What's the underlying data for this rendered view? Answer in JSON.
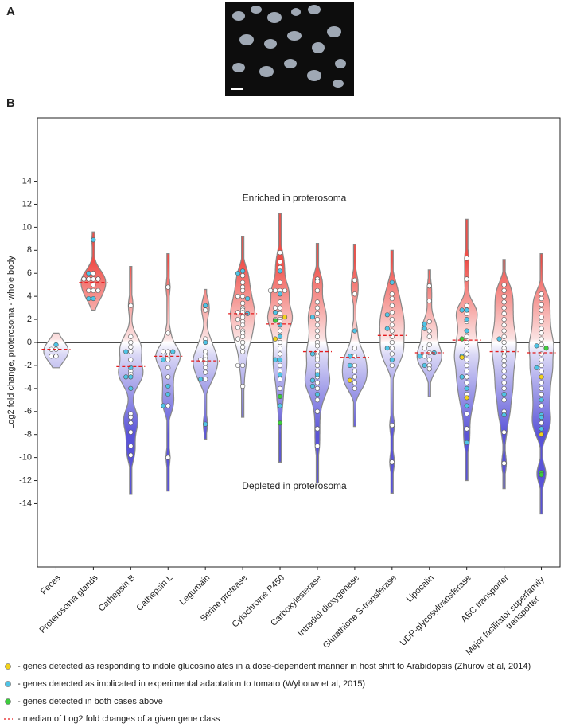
{
  "panel_a": {
    "label": "A"
  },
  "chart_data": {
    "type": "violin",
    "panel_label": "B",
    "ylabel": "Log2 fold change, proterosoma - whole body",
    "ylim": [
      -19.5,
      19.5
    ],
    "yticks": [
      -14,
      -12,
      -10,
      -8,
      -6,
      -4,
      -2,
      0,
      2,
      4,
      6,
      8,
      10,
      12,
      14
    ],
    "zero_line": true,
    "violin_colors": {
      "positive": "#f0504a",
      "negative": "#5a54d8"
    },
    "median_color": "#e31a1c",
    "annotations": [
      {
        "text": "Enriched in proterosoma",
        "y": 12.5
      },
      {
        "text": "Depleted in proterosoma",
        "y": -12.5
      }
    ],
    "groups": [
      {
        "name": "Feces",
        "min": -2.2,
        "max": 0.8,
        "median": -0.6,
        "values": [
          -0.2,
          -0.6,
          -0.6,
          -1.2,
          -1.2
        ],
        "colors": [
          "#4fc4e6",
          "#fff",
          "#fff",
          "#fff",
          "#fff"
        ]
      },
      {
        "name": "Proterosoma glands",
        "min": 2.8,
        "max": 9.6,
        "median": 5.2,
        "values": [
          8.9,
          6.0,
          5.5,
          5.5,
          5.5,
          5.5,
          5.0,
          4.5,
          4.5,
          4.5,
          6.0,
          3.8,
          3.8
        ],
        "colors": [
          "#4fc4e6",
          "#fff",
          "#fff",
          "#fff",
          "#fff",
          "#fff",
          "#fff",
          "#fff",
          "#fff",
          "#fff",
          "#4fc4e6",
          "#4fc4e6",
          "#4fc4e6"
        ]
      },
      {
        "name": "Cathepsin B",
        "min": -13.2,
        "max": 6.6,
        "median": -2.1,
        "values": [
          3.2,
          0.5,
          0,
          -0.4,
          -0.8,
          -1.5,
          -2.5,
          -2.8,
          -6.2,
          -6.5,
          -7.0,
          -7.8,
          -9.0,
          -9.8,
          -0.8,
          -2.2,
          -3.0,
          -3.0,
          -4.0
        ],
        "colors": [
          "#fff",
          "#fff",
          "#fff",
          "#fff",
          "#fff",
          "#fff",
          "#fff",
          "#fff",
          "#fff",
          "#fff",
          "#fff",
          "#fff",
          "#fff",
          "#fff",
          "#4fc4e6",
          "#4fc4e6",
          "#4fc4e6",
          "#4fc4e6",
          "#4fc4e6"
        ]
      },
      {
        "name": "Cathepsin L",
        "min": -12.9,
        "max": 7.7,
        "median": -1.2,
        "values": [
          4.8,
          0.8,
          -0.8,
          -0.8,
          -1.2,
          -2.2,
          -3.0,
          -1.5,
          -5.5,
          -10.0,
          -0.8,
          -1.5,
          -3.8,
          -4.5,
          -5.5
        ],
        "colors": [
          "#fff",
          "#fff",
          "#fff",
          "#fff",
          "#fff",
          "#fff",
          "#fff",
          "#fff",
          "#fff",
          "#fff",
          "#4fc4e6",
          "#4fc4e6",
          "#4fc4e6",
          "#4fc4e6",
          "#4fc4e6"
        ]
      },
      {
        "name": "Legumain",
        "min": -8.4,
        "max": 4.6,
        "median": -1.6,
        "values": [
          2.8,
          0.3,
          -0.8,
          -1.2,
          -1.5,
          -1.5,
          -1.8,
          -2.2,
          -2.6,
          -3.2,
          3.2,
          0,
          -3.2,
          -7.1
        ],
        "colors": [
          "#fff",
          "#fff",
          "#fff",
          "#fff",
          "#fff",
          "#fff",
          "#fff",
          "#fff",
          "#fff",
          "#fff",
          "#4fc4e6",
          "#4fc4e6",
          "#4fc4e6",
          "#4fc4e6"
        ]
      },
      {
        "name": "Serine protease",
        "min": -6.5,
        "max": 9.2,
        "median": 2.5,
        "values": [
          5.8,
          5.2,
          4.8,
          4.5,
          4.0,
          4.0,
          3.4,
          3.0,
          2.8,
          2.6,
          2.6,
          2.2,
          2.0,
          1.8,
          1.5,
          1.3,
          1.0,
          0.8,
          0.5,
          0.3,
          0,
          -0.4,
          -0.8,
          -2.0,
          -2.0,
          -3.8,
          6.2,
          6.0,
          3.8,
          2.5
        ],
        "colors": [
          "#fff",
          "#fff",
          "#fff",
          "#fff",
          "#fff",
          "#fff",
          "#fff",
          "#fff",
          "#fff",
          "#fff",
          "#fff",
          "#fff",
          "#fff",
          "#fff",
          "#fff",
          "#fff",
          "#fff",
          "#fff",
          "#fff",
          "#fff",
          "#fff",
          "#fff",
          "#fff",
          "#fff",
          "#fff",
          "#fff",
          "#4fc4e6",
          "#4fc4e6",
          "#4fc4e6",
          "#4fc4e6"
        ]
      },
      {
        "name": "Cytochrome P450",
        "min": -10.4,
        "max": 11.2,
        "median": 1.6,
        "values": [
          7.8,
          7.0,
          6.5,
          5.2,
          4.5,
          4.5,
          4.5,
          4.5,
          3.5,
          3.0,
          3.0,
          2.5,
          2.0,
          2.0,
          1.8,
          1.0,
          0,
          -0.5,
          -1.0,
          -2.0,
          -2.5,
          -3.2,
          -4.0,
          6.2,
          4.2,
          2.6,
          1.5,
          0.5,
          -1.5,
          -1.5,
          -2.8,
          -5.5,
          2.2,
          0.3,
          1.9,
          -4.7,
          -7.0
        ],
        "colors": [
          "#fff",
          "#fff",
          "#fff",
          "#fff",
          "#fff",
          "#fff",
          "#fff",
          "#fff",
          "#fff",
          "#fff",
          "#fff",
          "#fff",
          "#fff",
          "#fff",
          "#fff",
          "#fff",
          "#fff",
          "#fff",
          "#fff",
          "#fff",
          "#fff",
          "#fff",
          "#fff",
          "#4fc4e6",
          "#4fc4e6",
          "#4fc4e6",
          "#4fc4e6",
          "#4fc4e6",
          "#4fc4e6",
          "#4fc4e6",
          "#4fc4e6",
          "#4fc4e6",
          "#f2d21b",
          "#f2d21b",
          "#3dcc3d",
          "#3dcc3d",
          "#3dcc3d"
        ]
      },
      {
        "name": "Carboxylesterase",
        "min": -12.2,
        "max": 8.6,
        "median": -0.8,
        "values": [
          5.5,
          5.3,
          4.5,
          3.5,
          3.0,
          2.5,
          2.0,
          1.5,
          1.0,
          0.5,
          0,
          -0.3,
          -0.8,
          -1.2,
          -1.5,
          -2.0,
          -2.5,
          -3.0,
          -3.5,
          -4.0,
          -5.0,
          -6.0,
          -7.5,
          -9.0,
          2.2,
          -1.0,
          -2.8,
          -3.3,
          -3.8,
          -4.5
        ],
        "colors": [
          "#fff",
          "#fff",
          "#fff",
          "#fff",
          "#fff",
          "#fff",
          "#fff",
          "#fff",
          "#fff",
          "#fff",
          "#fff",
          "#fff",
          "#fff",
          "#fff",
          "#fff",
          "#fff",
          "#fff",
          "#fff",
          "#fff",
          "#fff",
          "#fff",
          "#fff",
          "#fff",
          "#fff",
          "#4fc4e6",
          "#4fc4e6",
          "#4fc4e6",
          "#4fc4e6",
          "#4fc4e6",
          "#4fc4e6"
        ]
      },
      {
        "name": "Intradiol dioxygenase",
        "min": -7.3,
        "max": 8.5,
        "median": -1.3,
        "values": [
          5.4,
          4.2,
          -0.5,
          -1.2,
          -2.0,
          -2.5,
          -3.0,
          -3.5,
          -4.0,
          1.0,
          -1.2,
          -2.0,
          -3.3
        ],
        "colors": [
          "#fff",
          "#fff",
          "#fff",
          "#fff",
          "#fff",
          "#fff",
          "#fff",
          "#fff",
          "#fff",
          "#4fc4e6",
          "#4fc4e6",
          "#4fc4e6",
          "#f2d21b"
        ]
      },
      {
        "name": "Glutathione S-transferase",
        "min": -13.1,
        "max": 8.0,
        "median": 0.6,
        "values": [
          4.2,
          3.8,
          3.2,
          2.6,
          2.0,
          1.5,
          1.0,
          0.5,
          0,
          -0.5,
          -1.0,
          -2.0,
          -7.2,
          -10.4,
          5.2,
          2.4,
          1.2,
          -0.5,
          -1.5
        ],
        "colors": [
          "#fff",
          "#fff",
          "#fff",
          "#fff",
          "#fff",
          "#fff",
          "#fff",
          "#fff",
          "#fff",
          "#fff",
          "#fff",
          "#fff",
          "#fff",
          "#fff",
          "#4fc4e6",
          "#4fc4e6",
          "#4fc4e6",
          "#4fc4e6",
          "#4fc4e6"
        ]
      },
      {
        "name": "Lipocalin",
        "min": -4.7,
        "max": 6.3,
        "median": -0.9,
        "values": [
          4.9,
          3.6,
          1.8,
          1.0,
          0.5,
          -0.2,
          -0.5,
          -0.9,
          -1.2,
          -1.5,
          -2.0,
          -2.3,
          1.6,
          1.2,
          -0.9,
          -1.2,
          -2.0
        ],
        "colors": [
          "#fff",
          "#fff",
          "#fff",
          "#fff",
          "#fff",
          "#fff",
          "#fff",
          "#fff",
          "#fff",
          "#fff",
          "#fff",
          "#fff",
          "#4fc4e6",
          "#4fc4e6",
          "#4fc4e6",
          "#4fc4e6",
          "#4fc4e6"
        ]
      },
      {
        "name": "UDP-glycosyltransferase",
        "min": -12.0,
        "max": 10.7,
        "median": 0.2,
        "values": [
          7.3,
          5.5,
          3.2,
          2.5,
          1.8,
          0.5,
          0,
          -0.5,
          -1.0,
          -1.5,
          -2.0,
          -2.5,
          -3.0,
          -3.5,
          -4.5,
          -6.2,
          -7.5,
          2.8,
          2.8,
          2.0,
          1.0,
          -1.2,
          -3.0,
          -4.0,
          -5.5,
          -8.7,
          -1.3,
          -4.8,
          0.3
        ],
        "colors": [
          "#fff",
          "#fff",
          "#fff",
          "#fff",
          "#fff",
          "#fff",
          "#fff",
          "#fff",
          "#fff",
          "#fff",
          "#fff",
          "#fff",
          "#fff",
          "#fff",
          "#fff",
          "#fff",
          "#fff",
          "#4fc4e6",
          "#4fc4e6",
          "#4fc4e6",
          "#4fc4e6",
          "#4fc4e6",
          "#4fc4e6",
          "#4fc4e6",
          "#4fc4e6",
          "#4fc4e6",
          "#f2d21b",
          "#f2d21b",
          "#3dcc3d"
        ]
      },
      {
        "name": "ABC transporter",
        "min": -12.7,
        "max": 7.2,
        "median": -0.8,
        "values": [
          5.0,
          4.5,
          4.0,
          3.5,
          3.0,
          2.5,
          2.0,
          1.5,
          1.0,
          0.5,
          0,
          -0.5,
          -0.8,
          -1.2,
          -1.6,
          -2.0,
          -2.5,
          -3.0,
          -3.5,
          -4.0,
          -5.0,
          -6.0,
          -7.8,
          -10.5,
          0.3,
          -4.5,
          -6.3
        ],
        "colors": [
          "#fff",
          "#fff",
          "#fff",
          "#fff",
          "#fff",
          "#fff",
          "#fff",
          "#fff",
          "#fff",
          "#fff",
          "#fff",
          "#fff",
          "#fff",
          "#fff",
          "#fff",
          "#fff",
          "#fff",
          "#fff",
          "#fff",
          "#fff",
          "#fff",
          "#fff",
          "#fff",
          "#fff",
          "#4fc4e6",
          "#4fc4e6",
          "#4fc4e6"
        ]
      },
      {
        "name": "Major facilitator superfamily transporter",
        "min": -14.9,
        "max": 7.7,
        "median": -0.9,
        "values": [
          4.2,
          3.8,
          3.3,
          2.8,
          2.2,
          1.8,
          1.2,
          0.8,
          0.3,
          -0.2,
          -1.0,
          -1.5,
          -2.0,
          -2.5,
          -3.5,
          -4.0,
          -4.5,
          -5.5,
          -7.0,
          -0.3,
          -2.2,
          -5.0,
          -6.3,
          -6.5,
          -7.5,
          -3.0,
          -8.0,
          -0.5,
          -11.3,
          -11.5
        ],
        "colors": [
          "#fff",
          "#fff",
          "#fff",
          "#fff",
          "#fff",
          "#fff",
          "#fff",
          "#fff",
          "#fff",
          "#fff",
          "#fff",
          "#fff",
          "#fff",
          "#fff",
          "#fff",
          "#fff",
          "#fff",
          "#fff",
          "#fff",
          "#4fc4e6",
          "#4fc4e6",
          "#4fc4e6",
          "#4fc4e6",
          "#4fc4e6",
          "#4fc4e6",
          "#f2d21b",
          "#f2d21b",
          "#3dcc3d",
          "#3dcc3d",
          "#3dcc3d"
        ]
      }
    ],
    "legend": [
      {
        "color": "#f2d21b",
        "label": "- genes detected as responding to indole glucosinolates in a dose-dependent manner in host shift to Arabidopsis (Zhurov et al, 2014)"
      },
      {
        "color": "#4fc4e6",
        "label": "- genes detected as implicated in experimental adaptation to tomato (Wybouw et al, 2015)"
      },
      {
        "color": "#3dcc3d",
        "label": "- genes detected in both cases above"
      },
      {
        "color": "#e31a1c",
        "style": "dashed",
        "label": "- median of Log2 fold changes of a given gene class"
      }
    ]
  }
}
